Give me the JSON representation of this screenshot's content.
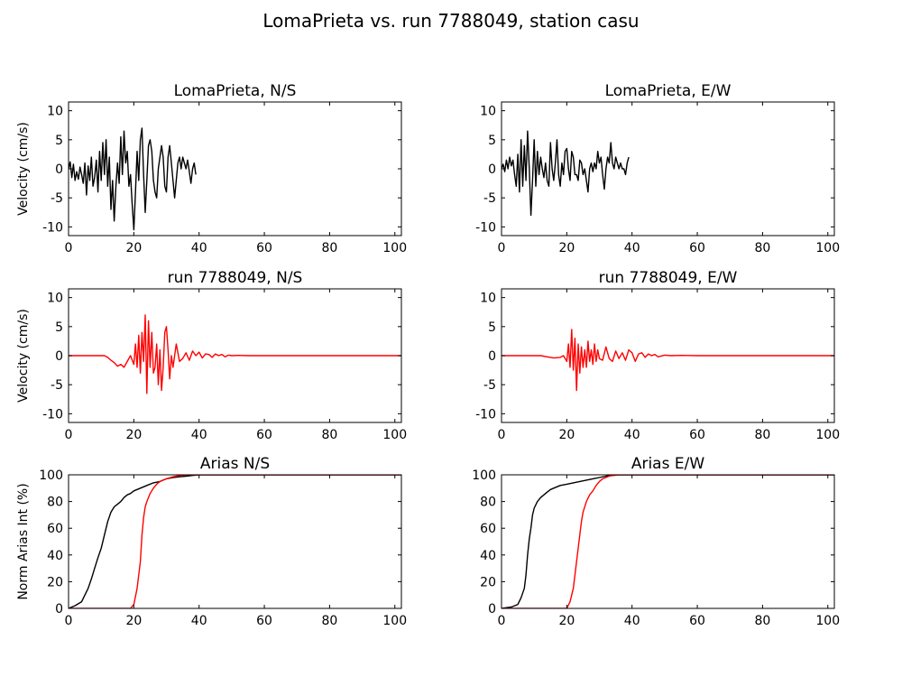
{
  "figure": {
    "suptitle": "LomaPrieta vs. run 7788049, station casu"
  },
  "colors": {
    "recorded": "#000000",
    "simulated": "#ff0000"
  },
  "chart_data": [
    {
      "id": "lp-ns",
      "type": "line",
      "title": "LomaPrieta, N/S",
      "ylabel": "Velocity (cm/s)",
      "xlim": [
        0,
        102
      ],
      "ylim": [
        -11.5,
        11.5
      ],
      "xticks": [
        0,
        20,
        40,
        60,
        80,
        100
      ],
      "yticks": [
        -10,
        -5,
        0,
        5,
        10
      ],
      "series": [
        {
          "color": "#000000",
          "x": [
            0,
            0.5,
            1,
            1.5,
            2,
            2.5,
            3,
            3.5,
            4,
            4.5,
            5,
            5.5,
            6,
            6.5,
            7,
            7.5,
            8,
            8.5,
            9,
            9.5,
            10,
            10.5,
            11,
            11.5,
            12,
            12.5,
            13,
            13.5,
            14,
            14.5,
            15,
            15.5,
            16,
            16.5,
            17,
            17.5,
            18,
            18.5,
            19,
            19.5,
            20,
            20.5,
            21,
            21.5,
            22,
            22.5,
            23,
            23.5,
            24,
            24.5,
            25,
            25.5,
            26,
            26.5,
            27,
            27.5,
            28,
            28.5,
            29,
            29.5,
            30,
            30.5,
            31,
            31.5,
            32,
            32.5,
            33,
            33.5,
            34,
            34.5,
            35,
            35.5,
            36,
            36.5,
            37,
            37.5,
            38,
            38.5,
            39
          ],
          "y": [
            0,
            1.2,
            -1.5,
            0.8,
            -2,
            -0.5,
            -1.8,
            0.3,
            -1,
            -2.5,
            1,
            -4.5,
            0.5,
            -2,
            2,
            -3,
            -1.5,
            1.5,
            -4,
            3,
            -2,
            4.5,
            -1,
            5,
            -3,
            2,
            -7,
            -2,
            -9,
            -3,
            1,
            -2.5,
            5.5,
            -1,
            6.5,
            1,
            3,
            -3,
            -1,
            -6,
            -10.5,
            -4,
            3,
            -2,
            5,
            7,
            -1,
            -7.5,
            -2,
            4,
            5,
            3,
            -2,
            -4,
            -5,
            0,
            2,
            4,
            2,
            -3,
            -4,
            2,
            4,
            1,
            -2,
            -5,
            -2,
            1,
            2,
            0,
            2,
            1,
            0,
            1.5,
            -0.5,
            -2.5,
            0,
            1,
            -1
          ]
        }
      ]
    },
    {
      "id": "lp-ew",
      "type": "line",
      "title": "LomaPrieta, E/W",
      "ylabel": "",
      "xlim": [
        0,
        102
      ],
      "ylim": [
        -11.5,
        11.5
      ],
      "xticks": [
        0,
        20,
        40,
        60,
        80,
        100
      ],
      "yticks": [
        -10,
        -5,
        0,
        5,
        10
      ],
      "series": [
        {
          "color": "#000000",
          "x": [
            0,
            0.5,
            1,
            1.5,
            2,
            2.5,
            3,
            3.5,
            4,
            4.5,
            5,
            5.5,
            6,
            6.5,
            7,
            7.5,
            8,
            8.5,
            9,
            9.5,
            10,
            10.5,
            11,
            11.5,
            12,
            12.5,
            13,
            13.5,
            14,
            14.5,
            15,
            15.5,
            16,
            16.5,
            17,
            17.5,
            18,
            18.5,
            19,
            19.5,
            20,
            20.5,
            21,
            21.5,
            22,
            22.5,
            23,
            23.5,
            24,
            24.5,
            25,
            25.5,
            26,
            26.5,
            27,
            27.5,
            28,
            28.5,
            29,
            29.5,
            30,
            30.5,
            31,
            31.5,
            32,
            32.5,
            33,
            33.5,
            34,
            34.5,
            35,
            35.5,
            36,
            36.5,
            37,
            37.5,
            38,
            38.5,
            39
          ],
          "y": [
            0,
            0.8,
            -0.5,
            1.5,
            0,
            2,
            0.5,
            1.5,
            -1,
            -3,
            2.5,
            -4,
            5,
            -3,
            4,
            -2,
            6.5,
            0,
            -8,
            -2,
            5,
            -3,
            3,
            -1,
            2,
            0,
            -1.5,
            1,
            -2,
            -3,
            4.5,
            0,
            -2,
            1,
            5,
            -1,
            -3,
            1,
            -1,
            3,
            3.5,
            0,
            -2,
            3,
            2,
            -1,
            -1,
            -2,
            1.5,
            1,
            -1,
            0,
            -2,
            -4,
            0,
            1,
            -0.5,
            1,
            0,
            3,
            1,
            2,
            -1,
            -3.5,
            0,
            2,
            1,
            4.5,
            1,
            0,
            2,
            1,
            0,
            1,
            0,
            0,
            -1,
            1,
            2
          ]
        }
      ]
    },
    {
      "id": "run-ns",
      "type": "line",
      "title": "run 7788049, N/S",
      "ylabel": "Velocity (cm/s)",
      "xlim": [
        0,
        102
      ],
      "ylim": [
        -11.5,
        11.5
      ],
      "xticks": [
        0,
        20,
        40,
        60,
        80,
        100
      ],
      "yticks": [
        -10,
        -5,
        0,
        5,
        10
      ],
      "series": [
        {
          "color": "#ff0000",
          "x": [
            0,
            10,
            11,
            12,
            13,
            14,
            15,
            16,
            17,
            18,
            19,
            20,
            20.5,
            21,
            21.5,
            22,
            22.5,
            23,
            23.5,
            24,
            24.5,
            25,
            25.5,
            26,
            26.5,
            27,
            27.5,
            28,
            28.5,
            29,
            29.5,
            30,
            30.5,
            31,
            31.5,
            32,
            33,
            34,
            35,
            36,
            37,
            38,
            39,
            40,
            41,
            42,
            43,
            44,
            45,
            46,
            47,
            48,
            49,
            50,
            52,
            55,
            60,
            102
          ],
          "y": [
            0,
            0,
            0,
            -0.3,
            -0.8,
            -1.2,
            -1.8,
            -1.5,
            -2,
            -1,
            0,
            -1.5,
            2,
            -2,
            3.5,
            -3,
            4,
            -1,
            7,
            -6.5,
            6,
            -2,
            4,
            -3,
            -2,
            2,
            -5,
            1,
            -6,
            -2,
            4,
            5,
            1,
            -4,
            0,
            -2,
            2,
            -1,
            -0.5,
            0.5,
            -0.8,
            0.8,
            0,
            0.6,
            -0.4,
            0.3,
            0.2,
            -0.3,
            0.3,
            0,
            0.2,
            -0.2,
            0.1,
            0,
            0.05,
            0,
            0,
            0
          ]
        }
      ]
    },
    {
      "id": "run-ew",
      "type": "line",
      "title": "run 7788049, E/W",
      "ylabel": "",
      "xlim": [
        0,
        102
      ],
      "ylim": [
        -11.5,
        11.5
      ],
      "xticks": [
        0,
        20,
        40,
        60,
        80,
        100
      ],
      "yticks": [
        -10,
        -5,
        0,
        5,
        10
      ],
      "series": [
        {
          "color": "#ff0000",
          "x": [
            0,
            12,
            14,
            16,
            18,
            19,
            20,
            20.5,
            21,
            21.5,
            22,
            22.5,
            23,
            23.5,
            24,
            24.5,
            25,
            25.5,
            26,
            26.5,
            27,
            27.5,
            28,
            28.5,
            29,
            29.5,
            30,
            31,
            32,
            33,
            34,
            35,
            36,
            37,
            38,
            39,
            40,
            41,
            42,
            43,
            44,
            45,
            46,
            47,
            48,
            50,
            52,
            55,
            60,
            102
          ],
          "y": [
            0,
            0,
            -0.2,
            -0.4,
            -0.3,
            0,
            -1,
            2,
            -2,
            4.5,
            -2.5,
            3,
            -6,
            2,
            -3,
            1.5,
            -2,
            1,
            -2,
            2.5,
            -1,
            1,
            -1.5,
            2,
            -1,
            1,
            -0.5,
            -0.8,
            1.5,
            -0.5,
            -1,
            0.8,
            -0.5,
            0.5,
            -0.8,
            1,
            0.5,
            -1,
            0.3,
            0.5,
            -0.3,
            0.3,
            0,
            0.2,
            -0.2,
            0.1,
            0,
            0.05,
            0,
            0
          ]
        }
      ]
    },
    {
      "id": "arias-ns",
      "type": "line",
      "title": "Arias N/S",
      "ylabel": "Norm Arias Int (%)",
      "xlim": [
        0,
        102
      ],
      "ylim": [
        0,
        100
      ],
      "xticks": [
        0,
        20,
        40,
        60,
        80,
        100
      ],
      "yticks": [
        0,
        20,
        40,
        60,
        80,
        100
      ],
      "series": [
        {
          "color": "#000000",
          "x": [
            0,
            2,
            4,
            5,
            6,
            7,
            8,
            9,
            10,
            11,
            12,
            13,
            14,
            15,
            16,
            17,
            18,
            19,
            20,
            22,
            24,
            26,
            28,
            30,
            32,
            34,
            36,
            38,
            40,
            50,
            102
          ],
          "y": [
            0,
            2,
            5,
            10,
            15,
            22,
            30,
            38,
            45,
            55,
            65,
            72,
            76,
            78,
            80,
            83,
            85,
            86,
            88,
            90,
            92,
            94,
            95,
            97,
            98,
            98.5,
            99,
            99.5,
            100,
            100,
            100
          ]
        },
        {
          "color": "#ff0000",
          "x": [
            0,
            19,
            20,
            21,
            22,
            22.5,
            23,
            23.5,
            24,
            25,
            26,
            27,
            28,
            29,
            30,
            32,
            34,
            36,
            38,
            40,
            50,
            102
          ],
          "y": [
            0,
            0,
            3,
            15,
            35,
            55,
            68,
            76,
            80,
            86,
            90,
            93,
            95,
            96,
            97,
            98.5,
            99.5,
            100,
            100,
            100,
            100,
            100
          ]
        }
      ]
    },
    {
      "id": "arias-ew",
      "type": "line",
      "title": "Arias E/W",
      "ylabel": "",
      "xlim": [
        0,
        102
      ],
      "ylim": [
        0,
        100
      ],
      "xticks": [
        0,
        20,
        40,
        60,
        80,
        100
      ],
      "yticks": [
        0,
        20,
        40,
        60,
        80,
        100
      ],
      "series": [
        {
          "color": "#000000",
          "x": [
            0,
            3,
            5,
            6,
            7,
            7.5,
            8,
            8.5,
            9,
            9.5,
            10,
            11,
            12,
            13,
            14,
            15,
            16,
            17,
            18,
            20,
            22,
            24,
            26,
            28,
            30,
            32,
            34,
            36,
            40,
            102
          ],
          "y": [
            0,
            1,
            3,
            8,
            15,
            25,
            40,
            52,
            60,
            70,
            75,
            80,
            83,
            85,
            87,
            89,
            90,
            91,
            92,
            93,
            94,
            95,
            96,
            97,
            98,
            99,
            99.5,
            100,
            100,
            100
          ]
        },
        {
          "color": "#ff0000",
          "x": [
            0,
            20,
            21,
            22,
            22.5,
            23,
            23.5,
            24,
            24.5,
            25,
            26,
            27,
            28,
            29,
            30,
            31,
            32,
            33,
            34,
            36,
            40,
            102
          ],
          "y": [
            0,
            0,
            5,
            15,
            25,
            35,
            45,
            55,
            65,
            72,
            80,
            85,
            88,
            92,
            95,
            97,
            98,
            99,
            99.5,
            100,
            100,
            100
          ]
        }
      ]
    }
  ]
}
